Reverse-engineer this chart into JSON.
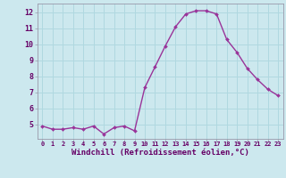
{
  "x": [
    0,
    1,
    2,
    3,
    4,
    5,
    6,
    7,
    8,
    9,
    10,
    11,
    12,
    13,
    14,
    15,
    16,
    17,
    18,
    19,
    20,
    21,
    22,
    23
  ],
  "y": [
    4.9,
    4.7,
    4.7,
    4.8,
    4.7,
    4.9,
    4.4,
    4.8,
    4.9,
    4.6,
    7.3,
    8.6,
    9.9,
    11.1,
    11.9,
    12.1,
    12.1,
    11.9,
    10.3,
    9.5,
    8.5,
    7.8,
    7.2,
    6.8
  ],
  "line_color": "#993399",
  "marker": "D",
  "markersize": 2.0,
  "linewidth": 1.0,
  "xlabel": "Windchill (Refroidissement éolien,°C)",
  "xtick_labels": [
    "0",
    "1",
    "2",
    "3",
    "4",
    "5",
    "6",
    "7",
    "8",
    "9",
    "10",
    "11",
    "12",
    "13",
    "14",
    "15",
    "16",
    "17",
    "18",
    "19",
    "20",
    "21",
    "22",
    "23"
  ],
  "ytick_values": [
    5,
    6,
    7,
    8,
    9,
    10,
    11,
    12
  ],
  "xlim": [
    -0.5,
    23.5
  ],
  "ylim": [
    4.1,
    12.55
  ],
  "background_color": "#cce8ee",
  "grid_color": "#b0d8e0",
  "spine_color": "#9999aa",
  "tick_color": "#660066",
  "label_color": "#660066"
}
